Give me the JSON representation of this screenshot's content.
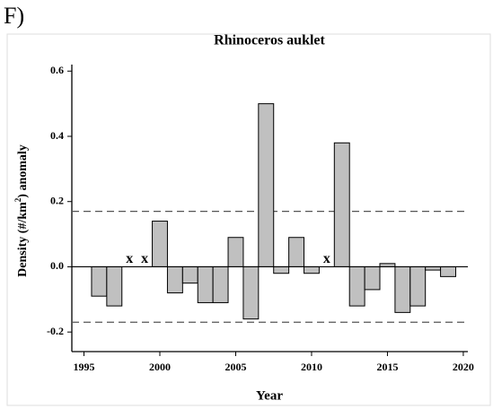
{
  "chart_data": {
    "type": "bar",
    "panel_label": "F)",
    "title": "Rhinoceros auklet",
    "xlabel": "Year",
    "ylabel": {
      "text": "Density (#/km",
      "superscript": "2",
      "suffix": ") anomaly"
    },
    "x": [
      1996,
      1997,
      1998,
      1999,
      2000,
      2001,
      2002,
      2003,
      2004,
      2005,
      2006,
      2007,
      2008,
      2009,
      2010,
      2011,
      2012,
      2013,
      2014,
      2015,
      2016,
      2017,
      2018,
      2019
    ],
    "values": [
      -0.09,
      -0.12,
      null,
      null,
      0.14,
      -0.08,
      -0.05,
      -0.11,
      -0.11,
      0.09,
      -0.16,
      0.5,
      -0.02,
      0.09,
      -0.02,
      null,
      0.38,
      -0.12,
      -0.07,
      0.01,
      -0.14,
      -0.12,
      -0.01,
      -0.03
    ],
    "missing_marker": "x",
    "color": "#c0c0c0",
    "reference_lines": [
      0.17,
      -0.17
    ],
    "xlim": [
      1994.2,
      2020.3
    ],
    "ylim": [
      -0.26,
      0.62
    ],
    "xticks": [
      1995,
      2000,
      2005,
      2010,
      2015,
      2020
    ],
    "yticks": [
      -0.2,
      {
        "value": 0,
        "label": "0.0"
      },
      0.2,
      0.4,
      0.6
    ]
  }
}
